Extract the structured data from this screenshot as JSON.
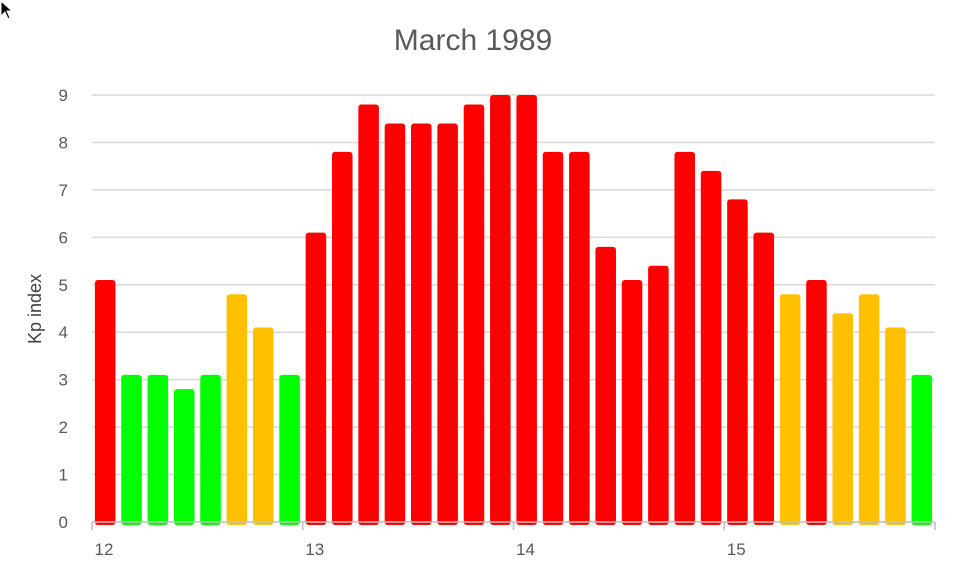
{
  "colors": {
    "red": "#ff0000",
    "orange": "#ffc000",
    "green": "#00ff00",
    "grid": "#d9d9d9",
    "text": "#595959"
  },
  "chart_data": {
    "type": "bar",
    "title": "March 1989",
    "xlabel": "",
    "ylabel": "Kp index",
    "ylim": [
      0,
      9
    ],
    "yticks": [
      0,
      1,
      2,
      3,
      4,
      5,
      6,
      7,
      8,
      9
    ],
    "xtick_labels": [
      {
        "label": "12",
        "x": 0
      },
      {
        "label": "13",
        "x": 8
      },
      {
        "label": "14",
        "x": 16
      },
      {
        "label": "15",
        "x": 24
      }
    ],
    "grid": true,
    "series": [
      {
        "values": [
          5.1,
          3.1,
          3.1,
          2.8,
          3.1,
          4.8,
          4.1,
          3.1,
          6.1,
          7.8,
          8.8,
          8.4,
          8.4,
          8.4,
          8.8,
          9.0,
          9.0,
          7.8,
          7.8,
          5.8,
          5.1,
          5.4,
          7.8,
          7.4,
          6.8,
          6.1,
          4.8,
          5.1,
          4.4,
          4.8,
          4.1,
          3.1
        ],
        "colors": [
          "red",
          "green",
          "green",
          "green",
          "green",
          "orange",
          "orange",
          "green",
          "red",
          "red",
          "red",
          "red",
          "red",
          "red",
          "red",
          "red",
          "red",
          "red",
          "red",
          "red",
          "red",
          "red",
          "red",
          "red",
          "red",
          "red",
          "orange",
          "red",
          "orange",
          "orange",
          "orange",
          "green"
        ]
      }
    ]
  }
}
